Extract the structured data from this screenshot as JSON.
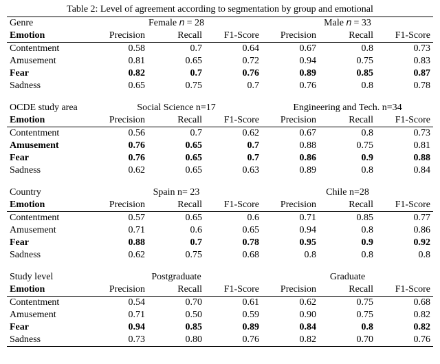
{
  "caption": "Table 2: Level of agreement according to segmentation by group and emotional",
  "metric_labels": [
    "Precision",
    "Recall",
    "F1-Score"
  ],
  "emotion_header": "Emotion",
  "style": {
    "font_family": "Times New Roman",
    "font_size_pt": 11,
    "text_color": "#000000",
    "background_color": "#ffffff",
    "rule_color": "#000000"
  },
  "sections": [
    {
      "title": "Genre",
      "groups": [
        {
          "label": "Female 𝑛 = 28"
        },
        {
          "label": "Male 𝑛 = 33"
        }
      ],
      "rows": [
        {
          "label": "Contentment",
          "bold": false,
          "left": [
            "0.58",
            "0.7",
            "0.64"
          ],
          "right": [
            "0.67",
            "0.8",
            "0.73"
          ]
        },
        {
          "label": "Amusement",
          "bold": false,
          "left": [
            "0.81",
            "0.65",
            "0.72"
          ],
          "right": [
            "0.94",
            "0.75",
            "0.83"
          ]
        },
        {
          "label": "Fear",
          "bold": true,
          "left": [
            "0.82",
            "0.7",
            "0.76"
          ],
          "right": [
            "0.89",
            "0.85",
            "0.87"
          ]
        },
        {
          "label": "Sadness",
          "bold": false,
          "left": [
            "0.65",
            "0.75",
            "0.7"
          ],
          "right": [
            "0.76",
            "0.8",
            "0.78"
          ]
        }
      ]
    },
    {
      "title": "OCDE study area",
      "groups": [
        {
          "label": "Social Science n=17"
        },
        {
          "label": "Engineering and Tech. n=34"
        }
      ],
      "rows": [
        {
          "label": "Contentment",
          "bold": false,
          "left": [
            "0.56",
            "0.7",
            "0.62"
          ],
          "right": [
            "0.67",
            "0.8",
            "0.73"
          ]
        },
        {
          "label": "Amusement",
          "bold": true,
          "left": [
            "0.76",
            "0.65",
            "0.7"
          ],
          "right": [
            "0.88",
            "0.75",
            "0.81"
          ],
          "bold_right": false
        },
        {
          "label": "Fear",
          "bold": true,
          "left": [
            "0.76",
            "0.65",
            "0.7"
          ],
          "right": [
            "0.86",
            "0.9",
            "0.88"
          ]
        },
        {
          "label": "Sadness",
          "bold": false,
          "left": [
            "0.62",
            "0.65",
            "0.63"
          ],
          "right": [
            "0.89",
            "0.8",
            "0.84"
          ]
        }
      ]
    },
    {
      "title": "Country",
      "groups": [
        {
          "label": "Spain n= 23"
        },
        {
          "label": "Chile n=28"
        }
      ],
      "rows": [
        {
          "label": "Contentment",
          "bold": false,
          "left": [
            "0.57",
            "0.65",
            "0.6"
          ],
          "right": [
            "0.71",
            "0.85",
            "0.77"
          ]
        },
        {
          "label": "Amusement",
          "bold": false,
          "left": [
            "0.71",
            "0.6",
            "0.65"
          ],
          "right": [
            "0.94",
            "0.8",
            "0.86"
          ]
        },
        {
          "label": "Fear",
          "bold": true,
          "left": [
            "0.88",
            "0.7",
            "0.78"
          ],
          "right": [
            "0.95",
            "0.9",
            "0.92"
          ]
        },
        {
          "label": "Sadness",
          "bold": false,
          "left": [
            "0.62",
            "0.75",
            "0.68"
          ],
          "right": [
            "0.8",
            "0.8",
            "0.8"
          ]
        }
      ]
    },
    {
      "title": "Study level",
      "groups": [
        {
          "label": "Postgraduate"
        },
        {
          "label": "Graduate"
        }
      ],
      "rows": [
        {
          "label": "Contentment",
          "bold": false,
          "left": [
            "0.54",
            "0.70",
            "0.61"
          ],
          "right": [
            "0.62",
            "0.75",
            "0.68"
          ]
        },
        {
          "label": "Amusement",
          "bold": false,
          "left": [
            "0.71",
            "0.50",
            "0.59"
          ],
          "right": [
            "0.90",
            "0.75",
            "0.82"
          ]
        },
        {
          "label": "Fear",
          "bold": true,
          "left": [
            "0.94",
            "0.85",
            "0.89"
          ],
          "right": [
            "0.84",
            "0.8",
            "0.82"
          ]
        },
        {
          "label": "Sadness",
          "bold": false,
          "left": [
            "0.73",
            "0.80",
            "0.76"
          ],
          "right": [
            "0.82",
            "0.70",
            "0.76"
          ]
        }
      ],
      "bottom_rule": true
    }
  ]
}
